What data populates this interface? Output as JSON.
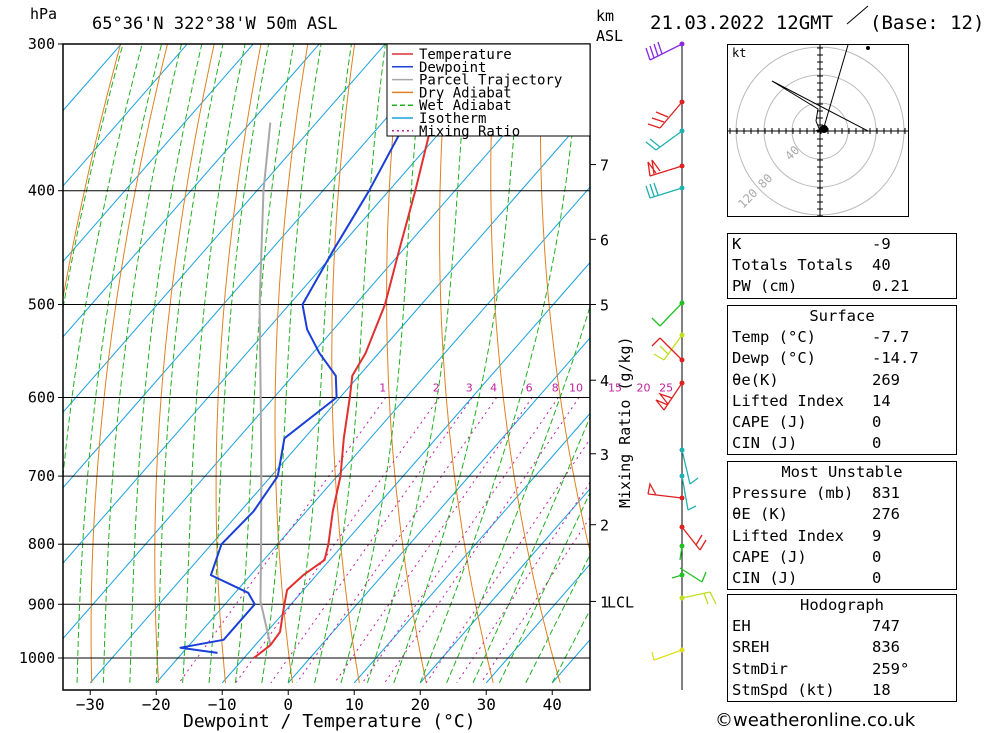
{
  "header": {
    "hpa": "hPa",
    "location": "65°36'N 322°38'W 50m ASL",
    "km_label": "km",
    "asl_label": "ASL",
    "datetime": "21.03.2022 12GMT",
    "base": "(Base: 12)"
  },
  "chart_data": {
    "type": "skew-t log-p",
    "xlabel": "Dewpoint / Temperature (°C)",
    "y_unit": "hPa",
    "mixing_ratio_label": "Mixing Ratio (g/kg)",
    "x_ticks": [
      -30,
      -20,
      -10,
      0,
      10,
      20,
      30,
      40
    ],
    "x_range": [
      -38,
      42
    ],
    "p_range": [
      300,
      1050
    ],
    "pressure_ticks": [
      300,
      400,
      500,
      600,
      700,
      800,
      900,
      1000
    ],
    "km_ticks": [
      {
        "km": "7",
        "p": 380
      },
      {
        "km": "6",
        "p": 440
      },
      {
        "km": "5",
        "p": 500
      },
      {
        "km": "4",
        "p": 580
      },
      {
        "km": "3",
        "p": 670
      },
      {
        "km": "2",
        "p": 770
      },
      {
        "km": "1",
        "p": 895
      }
    ],
    "lcl_label": "LCL",
    "lcl_pressure": 895,
    "mixing_ratio_values": [
      "1",
      "2",
      "3",
      "4",
      "6",
      "8",
      "10",
      "15",
      "20",
      "25"
    ],
    "legend": [
      {
        "name": "Temperature",
        "color": "#e03030",
        "style": "solid"
      },
      {
        "name": "Dewpoint",
        "color": "#1a3ed8",
        "style": "solid"
      },
      {
        "name": "Parcel Trajectory",
        "color": "#a8a8a8",
        "style": "solid"
      },
      {
        "name": "Dry Adiabat",
        "color": "#e08020",
        "style": "solid"
      },
      {
        "name": "Wet Adiabat",
        "color": "#20b020",
        "style": "dashed"
      },
      {
        "name": "Isotherm",
        "color": "#1aa0e0",
        "style": "solid"
      },
      {
        "name": "Mixing Ratio",
        "color": "#c020a0",
        "style": "dotted"
      }
    ],
    "temperature": [
      {
        "p": 1000,
        "t": -8.5
      },
      {
        "p": 975,
        "t": -7.7
      },
      {
        "p": 950,
        "t": -8.0
      },
      {
        "p": 925,
        "t": -9.5
      },
      {
        "p": 900,
        "t": -11.0
      },
      {
        "p": 875,
        "t": -12.5
      },
      {
        "p": 850,
        "t": -12.0
      },
      {
        "p": 825,
        "t": -10.8
      },
      {
        "p": 800,
        "t": -12.3
      },
      {
        "p": 750,
        "t": -16.0
      },
      {
        "p": 700,
        "t": -19.5
      },
      {
        "p": 650,
        "t": -24.0
      },
      {
        "p": 600,
        "t": -28.5
      },
      {
        "p": 575,
        "t": -31.0
      },
      {
        "p": 550,
        "t": -32.0
      },
      {
        "p": 500,
        "t": -35.5
      },
      {
        "p": 450,
        "t": -40.5
      },
      {
        "p": 400,
        "t": -46.0
      },
      {
        "p": 350,
        "t": -52.5
      },
      {
        "p": 300,
        "t": -58.0
      }
    ],
    "dewpoint": [
      {
        "p": 990,
        "t": -14.7
      },
      {
        "p": 980,
        "t": -21.0
      },
      {
        "p": 965,
        "t": -15.5
      },
      {
        "p": 950,
        "t": -15.5
      },
      {
        "p": 900,
        "t": -15.5
      },
      {
        "p": 880,
        "t": -18.0
      },
      {
        "p": 850,
        "t": -26.0
      },
      {
        "p": 800,
        "t": -28.5
      },
      {
        "p": 750,
        "t": -28.0
      },
      {
        "p": 700,
        "t": -29.0
      },
      {
        "p": 650,
        "t": -33.0
      },
      {
        "p": 600,
        "t": -30.5
      },
      {
        "p": 575,
        "t": -33.5
      },
      {
        "p": 550,
        "t": -39.0
      },
      {
        "p": 525,
        "t": -44.0
      },
      {
        "p": 500,
        "t": -48.0
      },
      {
        "p": 450,
        "t": -50.5
      },
      {
        "p": 400,
        "t": -53.0
      },
      {
        "p": 350,
        "t": -56.5
      },
      {
        "p": 300,
        "t": -62.0
      }
    ],
    "parcel": [
      {
        "p": 975,
        "t": -7.7
      },
      {
        "p": 895,
        "t": -15.0
      },
      {
        "p": 800,
        "t": -22.5
      },
      {
        "p": 700,
        "t": -31.5
      },
      {
        "p": 600,
        "t": -42.0
      },
      {
        "p": 500,
        "t": -54.5
      },
      {
        "p": 400,
        "t": -69.0
      },
      {
        "p": 350,
        "t": -77.0
      }
    ]
  },
  "hodograph": {
    "unit": "kt",
    "rings": [
      "40",
      "80",
      "120"
    ]
  },
  "indices": {
    "k_label": "K",
    "k_value": "-9",
    "tt_label": "Totals Totals",
    "tt_value": "40",
    "pw_label": "PW (cm)",
    "pw_value": "0.21"
  },
  "surface": {
    "title": "Surface",
    "temp_label": "Temp (°C)",
    "temp_value": "-7.7",
    "dewp_label": "Dewp (°C)",
    "dewp_value": "-14.7",
    "theta_label": "θe(K)",
    "theta_value": "269",
    "li_label": "Lifted Index",
    "li_value": "14",
    "cape_label": "CAPE (J)",
    "cape_value": "0",
    "cin_label": "CIN (J)",
    "cin_value": "0"
  },
  "most_unstable": {
    "title": "Most Unstable",
    "pressure_label": "Pressure (mb)",
    "pressure_value": "831",
    "theta_label": "θE (K)",
    "theta_value": "276",
    "li_label": "Lifted Index",
    "li_value": "9",
    "cape_label": "CAPE (J)",
    "cape_value": "0",
    "cin_label": "CIN (J)",
    "cin_value": "0"
  },
  "hodograph_stats": {
    "title": "Hodograph",
    "eh_label": "EH",
    "eh_value": "747",
    "sreh_label": "SREH",
    "sreh_value": "836",
    "stmdir_label": "StmDir",
    "stmdir_value": "259°",
    "stmspd_label": "StmSpd (kt)",
    "stmspd_value": "18"
  },
  "credit": "©weatheronline.co.uk"
}
